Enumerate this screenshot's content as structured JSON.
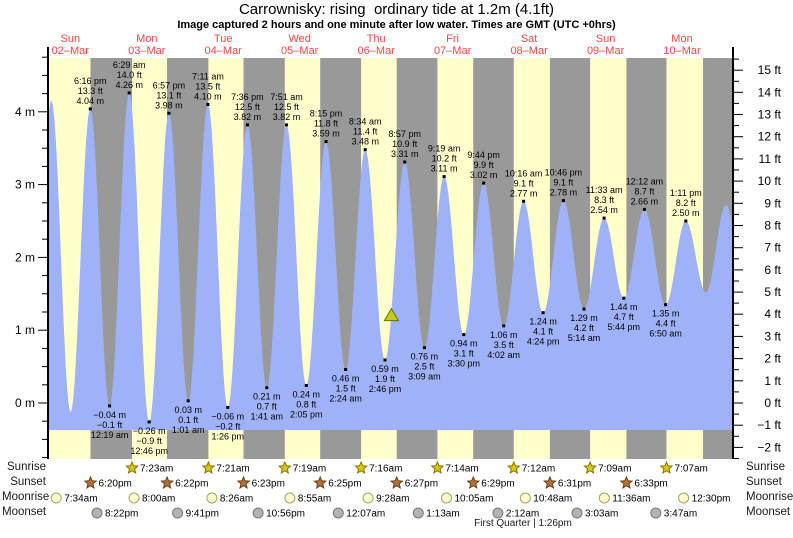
{
  "title": "Carrownisky: rising  ordinary tide at 1.2m (4.1ft)",
  "subtitle": "Image captured 2 hours and one minute after low water. Times are GMT (UTC +0hrs)",
  "colors": {
    "day_band": "#ffffcc",
    "night_band": "#999999",
    "tide_fill": "#9fb1f7",
    "date_text": "#ff4646",
    "annotation_text": "#000000",
    "axis_text": "#000000",
    "sunrise_star_fill": "#dcc800",
    "sunrise_star_stroke": "#887000",
    "sunset_star_fill": "#b4703c",
    "sunset_star_stroke": "#6b4018",
    "moonrise_dot_fill": "#ffffd0",
    "moonrise_dot_stroke": "#a8a060",
    "moonset_dot_fill": "#b4b4aa",
    "moonset_dot_stroke": "#787870",
    "current_marker_fill": "#c9c91e",
    "current_marker_stroke": "#6e6e00"
  },
  "days": [
    {
      "name": "Sun",
      "date": "02–Mar"
    },
    {
      "name": "Mon",
      "date": "03–Mar"
    },
    {
      "name": "Tue",
      "date": "04–Mar"
    },
    {
      "name": "Wed",
      "date": "05–Mar"
    },
    {
      "name": "Thu",
      "date": "06–Mar"
    },
    {
      "name": "Fri",
      "date": "07–Mar"
    },
    {
      "name": "Sat",
      "date": "08–Mar"
    },
    {
      "name": "Sun",
      "date": "09–Mar"
    },
    {
      "name": "Mon",
      "date": "10–Mar"
    }
  ],
  "chart_data": {
    "type": "area",
    "title": "Carrownisky tide curve 02-Mar to 10-Mar",
    "x_unit": "hours since 02-Mar 00:00 GMT",
    "y_unit_left": "m",
    "y_unit_right": "ft",
    "time_range": [
      5,
      220
    ],
    "left_ticks": [
      {
        "h": 0,
        "label": "0 m"
      },
      {
        "h": 1,
        "label": "1 m"
      },
      {
        "h": 2,
        "label": "2 m"
      },
      {
        "h": 3,
        "label": "3 m"
      },
      {
        "h": 4,
        "label": "4 m"
      }
    ],
    "right_ticks": [
      {
        "v": -2,
        "label": "−2 ft"
      },
      {
        "v": -1,
        "label": "−1 ft"
      },
      {
        "v": 0,
        "label": "0 ft"
      },
      {
        "v": 1,
        "label": "1 ft"
      },
      {
        "v": 2,
        "label": "2 ft"
      },
      {
        "v": 3,
        "label": "3 ft"
      },
      {
        "v": 4,
        "label": "4 ft"
      },
      {
        "v": 5,
        "label": "5 ft"
      },
      {
        "v": 6,
        "label": "6 ft"
      },
      {
        "v": 7,
        "label": "7 ft"
      },
      {
        "v": 8,
        "label": "8 ft"
      },
      {
        "v": 9,
        "label": "9 ft"
      },
      {
        "v": 10,
        "label": "10 ft"
      },
      {
        "v": 11,
        "label": "11 ft"
      },
      {
        "v": 12,
        "label": "12 ft"
      },
      {
        "v": 13,
        "label": "13 ft"
      },
      {
        "v": 14,
        "label": "14 ft"
      },
      {
        "v": 15,
        "label": "15 ft"
      }
    ],
    "sun_bands": {
      "rise": [
        5,
        31.38,
        55.35,
        79.32,
        103.27,
        127.23,
        151.2,
        175.15,
        199.12
      ],
      "set": [
        18.33,
        42.37,
        66.38,
        90.42,
        114.45,
        138.48,
        162.52,
        186.55,
        210.58
      ]
    },
    "extremes": [
      {
        "kind": "high",
        "t": -0.3,
        "h": -0.05,
        "lines": []
      },
      {
        "kind": "high",
        "t": 6.05,
        "h": 4.15,
        "lines": []
      },
      {
        "kind": "low",
        "t": 12.08,
        "h": -0.12,
        "lines": []
      },
      {
        "kind": "high",
        "t": 18.27,
        "h": 4.04,
        "lines": [
          "6:16 pm",
          "13.3 ft",
          "4.04 m"
        ]
      },
      {
        "kind": "low",
        "t": 24.32,
        "h": -0.04,
        "lines": [
          "−0.04 m",
          "−0.1 ft",
          "12:19 am"
        ]
      },
      {
        "kind": "high",
        "t": 30.48,
        "h": 4.26,
        "lines": [
          "6:29 am",
          "14.0 ft",
          "4.26 m"
        ]
      },
      {
        "kind": "low",
        "t": 36.77,
        "h": -0.26,
        "lines": [
          "−0.26 m",
          "−0.9 ft",
          "12:46 pm"
        ]
      },
      {
        "kind": "high",
        "t": 42.95,
        "h": 3.98,
        "lines": [
          "6:57 pm",
          "13.1 ft",
          "3.98 m"
        ]
      },
      {
        "kind": "low",
        "t": 49.02,
        "h": 0.03,
        "lines": [
          "0.03 m",
          "0.1 ft",
          "1:01 am"
        ]
      },
      {
        "kind": "high",
        "t": 55.18,
        "h": 4.1,
        "lines": [
          "7:11 am",
          "13.5 ft",
          "4.10 m"
        ]
      },
      {
        "kind": "low",
        "t": 61.43,
        "h": -0.06,
        "lines": [
          "−0.06 m",
          "−0.2 ft",
          "1:26 pm"
        ]
      },
      {
        "kind": "high",
        "t": 67.6,
        "h": 3.82,
        "lines": [
          "7:36 pm",
          "12.5 ft",
          "3.82 m"
        ]
      },
      {
        "kind": "low",
        "t": 73.68,
        "h": 0.21,
        "lines": [
          "0.21 m",
          "0.7 ft",
          "1:41 am"
        ]
      },
      {
        "kind": "high",
        "t": 79.85,
        "h": 3.82,
        "lines": [
          "7:51 am",
          "12.5 ft",
          "3.82 m"
        ]
      },
      {
        "kind": "low",
        "t": 86.08,
        "h": 0.24,
        "lines": [
          "0.24 m",
          "0.8 ft",
          "2:05 pm"
        ]
      },
      {
        "kind": "high",
        "t": 92.25,
        "h": 3.59,
        "lines": [
          "8:15 pm",
          "11.8 ft",
          "3.59 m"
        ]
      },
      {
        "kind": "low",
        "t": 98.4,
        "h": 0.46,
        "lines": [
          "0.46 m",
          "1.5 ft",
          "2:24 am"
        ]
      },
      {
        "kind": "high",
        "t": 104.57,
        "h": 3.48,
        "lines": [
          "8:34 am",
          "11.4 ft",
          "3.48 m"
        ]
      },
      {
        "kind": "low",
        "t": 110.77,
        "h": 0.59,
        "lines": [
          "0.59 m",
          "1.9 ft",
          "2:46 pm"
        ]
      },
      {
        "kind": "high",
        "t": 116.95,
        "h": 3.31,
        "lines": [
          "8:57 pm",
          "10.9 ft",
          "3.31 m"
        ]
      },
      {
        "kind": "low",
        "t": 123.15,
        "h": 0.76,
        "lines": [
          "0.76 m",
          "2.5 ft",
          "3:09 am"
        ]
      },
      {
        "kind": "high",
        "t": 129.32,
        "h": 3.11,
        "lines": [
          "9:19 am",
          "10.2 ft",
          "3.11 m"
        ]
      },
      {
        "kind": "low",
        "t": 135.5,
        "h": 0.94,
        "lines": [
          "0.94 m",
          "3.1 ft",
          "3:30 pm"
        ]
      },
      {
        "kind": "high",
        "t": 141.73,
        "h": 3.02,
        "lines": [
          "9:44 pm",
          "9.9 ft",
          "3.02 m"
        ]
      },
      {
        "kind": "low",
        "t": 148.03,
        "h": 1.06,
        "lines": [
          "1.06 m",
          "3.5 ft",
          "4:02 am"
        ]
      },
      {
        "kind": "high",
        "t": 154.27,
        "h": 2.77,
        "lines": [
          "10:16 am",
          "9.1 ft",
          "2.77 m"
        ]
      },
      {
        "kind": "low",
        "t": 160.4,
        "h": 1.24,
        "lines": [
          "1.24 m",
          "4.1 ft",
          "4:24 pm"
        ]
      },
      {
        "kind": "high",
        "t": 166.77,
        "h": 2.78,
        "lines": [
          "10:46 pm",
          "9.1 ft",
          "2.78 m"
        ]
      },
      {
        "kind": "low",
        "t": 173.23,
        "h": 1.29,
        "lines": [
          "1.29 m",
          "4.2 ft",
          "5:14 am"
        ]
      },
      {
        "kind": "high",
        "t": 179.55,
        "h": 2.54,
        "lines": [
          "11:33 am",
          "8.3 ft",
          "2.54 m"
        ]
      },
      {
        "kind": "low",
        "t": 185.73,
        "h": 1.44,
        "lines": [
          "1.44 m",
          "4.7 ft",
          "5:44 pm"
        ]
      },
      {
        "kind": "high",
        "t": 192.2,
        "h": 2.66,
        "lines": [
          "12:12 am",
          "8.7 ft",
          "2.66 m"
        ]
      },
      {
        "kind": "low",
        "t": 198.83,
        "h": 1.35,
        "lines": [
          "1.35 m",
          "4.4 ft",
          "6:50 am"
        ]
      },
      {
        "kind": "high",
        "t": 205.18,
        "h": 2.5,
        "lines": [
          "1:11 pm",
          "8.2 ft",
          "2.50 m"
        ]
      },
      {
        "kind": "low",
        "t": 211.5,
        "h": 1.52,
        "lines": []
      },
      {
        "kind": "high",
        "t": 217.8,
        "h": 2.72,
        "lines": []
      },
      {
        "kind": "low",
        "t": 224.0,
        "h": 1.45,
        "lines": []
      }
    ],
    "current_marker": {
      "t": 112.78,
      "h": 1.2,
      "meaning": "current tide level 1.2m (4.1ft), rising"
    }
  },
  "astro": {
    "sunrise": {
      "label": "Sunrise",
      "events": [
        {
          "t": 31.38,
          "time": "7:23am"
        },
        {
          "t": 55.35,
          "time": "7:21am"
        },
        {
          "t": 79.32,
          "time": "7:19am"
        },
        {
          "t": 103.27,
          "time": "7:16am"
        },
        {
          "t": 127.23,
          "time": "7:14am"
        },
        {
          "t": 151.2,
          "time": "7:12am"
        },
        {
          "t": 175.15,
          "time": "7:09am"
        },
        {
          "t": 199.12,
          "time": "7:07am"
        }
      ]
    },
    "sunset": {
      "label": "Sunset",
      "events": [
        {
          "t": 18.33,
          "time": "6:20pm"
        },
        {
          "t": 42.37,
          "time": "6:22pm"
        },
        {
          "t": 66.38,
          "time": "6:23pm"
        },
        {
          "t": 90.42,
          "time": "6:25pm"
        },
        {
          "t": 114.45,
          "time": "6:27pm"
        },
        {
          "t": 138.48,
          "time": "6:29pm"
        },
        {
          "t": 162.52,
          "time": "6:31pm"
        },
        {
          "t": 186.55,
          "time": "6:33pm"
        }
      ]
    },
    "moonrise": {
      "label": "Moonrise",
      "events": [
        {
          "t": 7.57,
          "time": "7:34am"
        },
        {
          "t": 32.0,
          "time": "8:00am"
        },
        {
          "t": 56.43,
          "time": "8:26am"
        },
        {
          "t": 80.92,
          "time": "8:55am"
        },
        {
          "t": 105.47,
          "time": "9:28am"
        },
        {
          "t": 130.08,
          "time": "10:05am"
        },
        {
          "t": 154.8,
          "time": "10:48am"
        },
        {
          "t": 179.6,
          "time": "11:36am"
        },
        {
          "t": 204.5,
          "time": "12:30pm"
        }
      ]
    },
    "moonset": {
      "label": "Moonset",
      "events": [
        {
          "t": 20.37,
          "time": "8:22pm"
        },
        {
          "t": 45.68,
          "time": "9:41pm"
        },
        {
          "t": 70.93,
          "time": "10:56pm"
        },
        {
          "t": 96.12,
          "time": "12:07am"
        },
        {
          "t": 121.22,
          "time": "1:13am"
        },
        {
          "t": 146.2,
          "time": "2:12am"
        },
        {
          "t": 171.05,
          "time": "3:03am"
        },
        {
          "t": 195.78,
          "time": "3:47am"
        }
      ]
    },
    "footnote": "First Quarter | 1:26pm"
  }
}
